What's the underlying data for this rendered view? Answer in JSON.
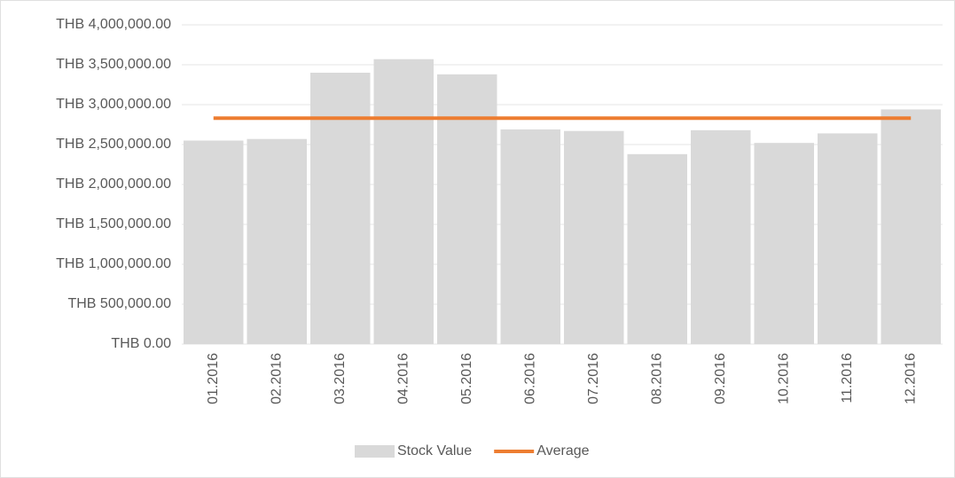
{
  "chart_data": {
    "type": "bar",
    "categories": [
      "01.2016",
      "02.2016",
      "03.2016",
      "04.2016",
      "05.2016",
      "06.2016",
      "07.2016",
      "08.2016",
      "09.2016",
      "10.2016",
      "11.2016",
      "12.2016"
    ],
    "series": [
      {
        "name": "Stock Value",
        "type": "bar",
        "color": "#d9d9d9",
        "values": [
          2550000,
          2570000,
          3400000,
          3570000,
          3380000,
          2690000,
          2670000,
          2380000,
          2680000,
          2520000,
          2640000,
          2940000
        ]
      },
      {
        "name": "Average",
        "type": "line",
        "color": "#ed7d31",
        "values": [
          2830000,
          2830000,
          2830000,
          2830000,
          2830000,
          2830000,
          2830000,
          2830000,
          2830000,
          2830000,
          2830000,
          2830000
        ]
      }
    ],
    "ylim": [
      0,
      4000000
    ],
    "yticks": [
      {
        "value": 0,
        "label": "THB 0.00"
      },
      {
        "value": 500000,
        "label": "THB 500,000.00"
      },
      {
        "value": 1000000,
        "label": "THB 1,000,000.00"
      },
      {
        "value": 1500000,
        "label": "THB 1,500,000.00"
      },
      {
        "value": 2000000,
        "label": "THB 2,000,000.00"
      },
      {
        "value": 2500000,
        "label": "THB 2,500,000.00"
      },
      {
        "value": 3000000,
        "label": "THB 3,000,000.00"
      },
      {
        "value": 3500000,
        "label": "THB 3,500,000.00"
      },
      {
        "value": 4000000,
        "label": "THB 4,000,000.00"
      }
    ],
    "grid": true
  }
}
